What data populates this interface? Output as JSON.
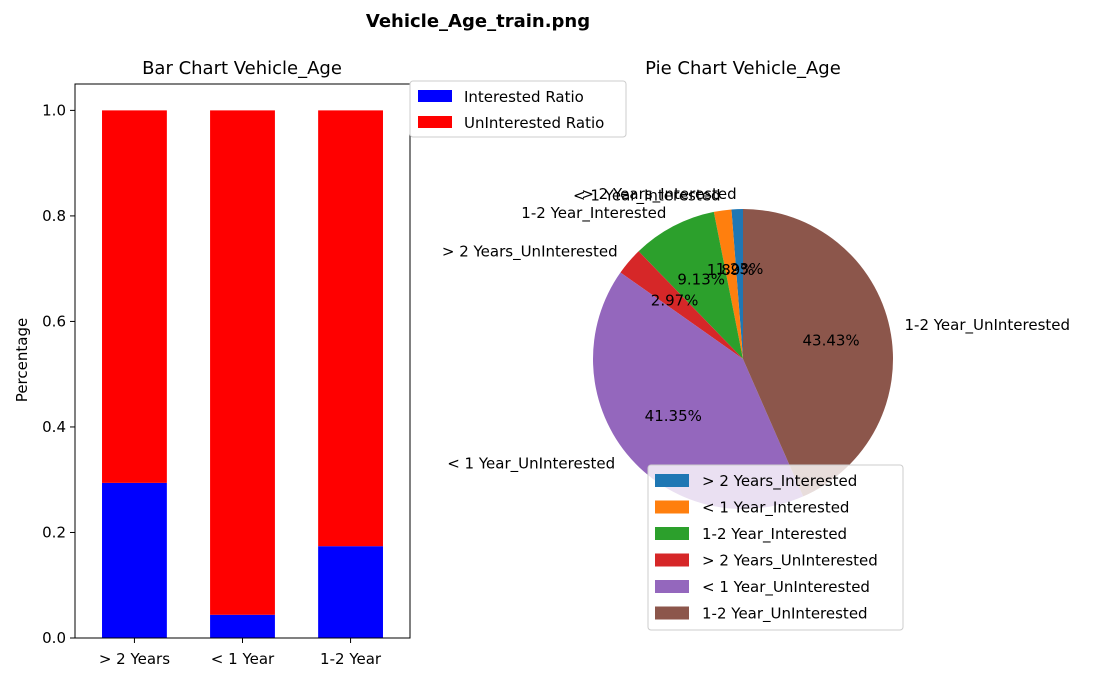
{
  "figure_title": "Vehicle_Age_train.png",
  "chart_data": [
    {
      "type": "bar",
      "stacked": true,
      "title": "Bar Chart Vehicle_Age",
      "xlabel": "",
      "ylabel": "Percentage",
      "categories": [
        "> 2 Years",
        "< 1 Year",
        "1-2 Year"
      ],
      "series": [
        {
          "name": "Interested Ratio",
          "color": "#0000ff",
          "values": [
            0.294,
            0.044,
            0.174
          ]
        },
        {
          "name": "UnInterested Ratio",
          "color": "#ff0000",
          "values": [
            0.706,
            0.956,
            0.826
          ]
        }
      ],
      "ylim": [
        0,
        1.05
      ],
      "yticks": [
        "0.0",
        "0.2",
        "0.4",
        "0.6",
        "0.8",
        "1.0"
      ],
      "legend_position": "upper right, outside plot"
    },
    {
      "type": "pie",
      "title": "Pie Chart Vehicle_Age",
      "slices": [
        {
          "label": "> 2 Years_Interested",
          "value": 1.23,
          "pct_label": "1.23%",
          "color": "#1f77b4"
        },
        {
          "label": "< 1 Year_Interested",
          "value": 1.89,
          "pct_label": "1.89%",
          "color": "#ff7f0e"
        },
        {
          "label": "1-2 Year_Interested",
          "value": 9.13,
          "pct_label": "9.13%",
          "color": "#2ca02c"
        },
        {
          "label": "> 2 Years_UnInterested",
          "value": 2.97,
          "pct_label": "2.97%",
          "color": "#d62728"
        },
        {
          "label": "< 1 Year_UnInterested",
          "value": 41.35,
          "pct_label": "41.35%",
          "color": "#9467bd"
        },
        {
          "label": "1-2 Year_UnInterested",
          "value": 43.43,
          "pct_label": "43.43%",
          "color": "#8c564b"
        }
      ],
      "legend_position": "lower center"
    }
  ]
}
